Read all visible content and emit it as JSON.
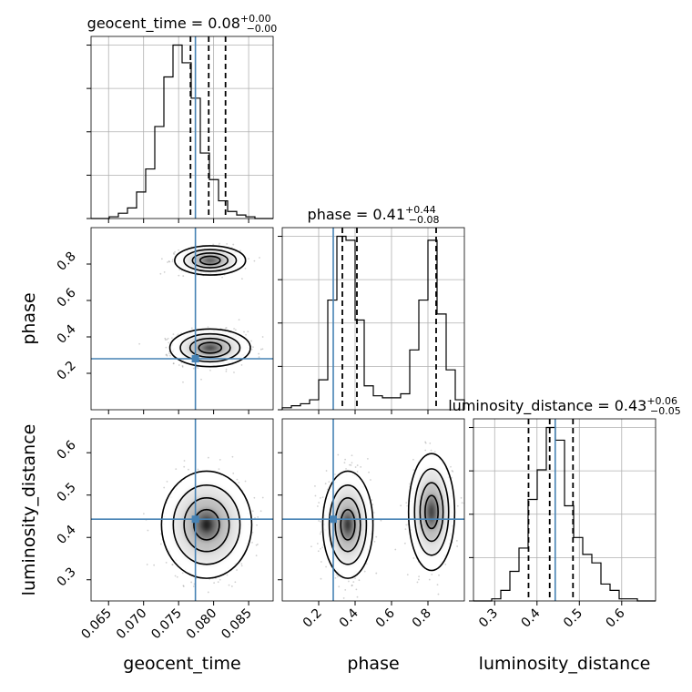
{
  "chart_data": {
    "type": "corner",
    "parameters": [
      "geocent_time",
      "phase",
      "luminosity_distance"
    ],
    "axis_labels": [
      "geocent_time",
      "phase",
      "luminosity_distance"
    ],
    "ranges": [
      [
        0.0625,
        0.0885
      ],
      [
        0.0,
        1.0
      ],
      [
        0.25,
        0.68
      ]
    ],
    "ticks": [
      {
        "values": [
          0.065,
          0.07,
          0.075,
          0.08,
          0.085
        ],
        "labels": [
          "0.065",
          "0.070",
          "0.075",
          "0.080",
          "0.085"
        ]
      },
      {
        "values": [
          0.2,
          0.4,
          0.6,
          0.8
        ],
        "labels": [
          "0.2",
          "0.4",
          "0.6",
          "0.8"
        ]
      },
      {
        "values": [
          0.3,
          0.4,
          0.5,
          0.6
        ],
        "labels": [
          "0.3",
          "0.4",
          "0.5",
          "0.6"
        ]
      }
    ],
    "truths": [
      0.0774,
      0.28,
      0.443
    ],
    "truth_color": "#4682b4",
    "titles": [
      {
        "prefix": "geocent_time = ",
        "value": "0.08",
        "plus": "+0.00",
        "minus": "−0.00"
      },
      {
        "prefix": "phase = ",
        "value": "0.41",
        "plus": "+0.44",
        "minus": "−0.08"
      },
      {
        "prefix": "luminosity_distance = ",
        "value": "0.43",
        "plus": "+0.06",
        "minus": "−0.05"
      }
    ],
    "quantiles": [
      [
        0.0767,
        0.0793,
        0.0817
      ],
      [
        0.33,
        0.41,
        0.845
      ],
      [
        0.38,
        0.43,
        0.485
      ]
    ],
    "histograms": [
      {
        "edges_start": 0.0625,
        "bin_width": 0.0013,
        "counts": [
          0,
          0,
          1,
          3,
          6,
          15,
          28,
          52,
          80,
          98,
          88,
          68,
          37,
          22,
          10,
          4,
          2,
          1,
          0,
          0
        ]
      },
      {
        "edges_start": 0.0,
        "bin_width": 0.05,
        "counts": [
          1,
          2,
          3,
          5,
          15,
          55,
          87,
          85,
          45,
          12,
          7,
          6,
          6,
          8,
          30,
          55,
          85,
          48,
          20,
          5
        ]
      },
      {
        "edges_start": 0.25,
        "bin_width": 0.0215,
        "counts": [
          0,
          0,
          1,
          5,
          14,
          25,
          48,
          62,
          82,
          76,
          45,
          30,
          22,
          18,
          8,
          5,
          1,
          1,
          0,
          0
        ]
      }
    ],
    "grid": true,
    "contour_levels": 4
  }
}
